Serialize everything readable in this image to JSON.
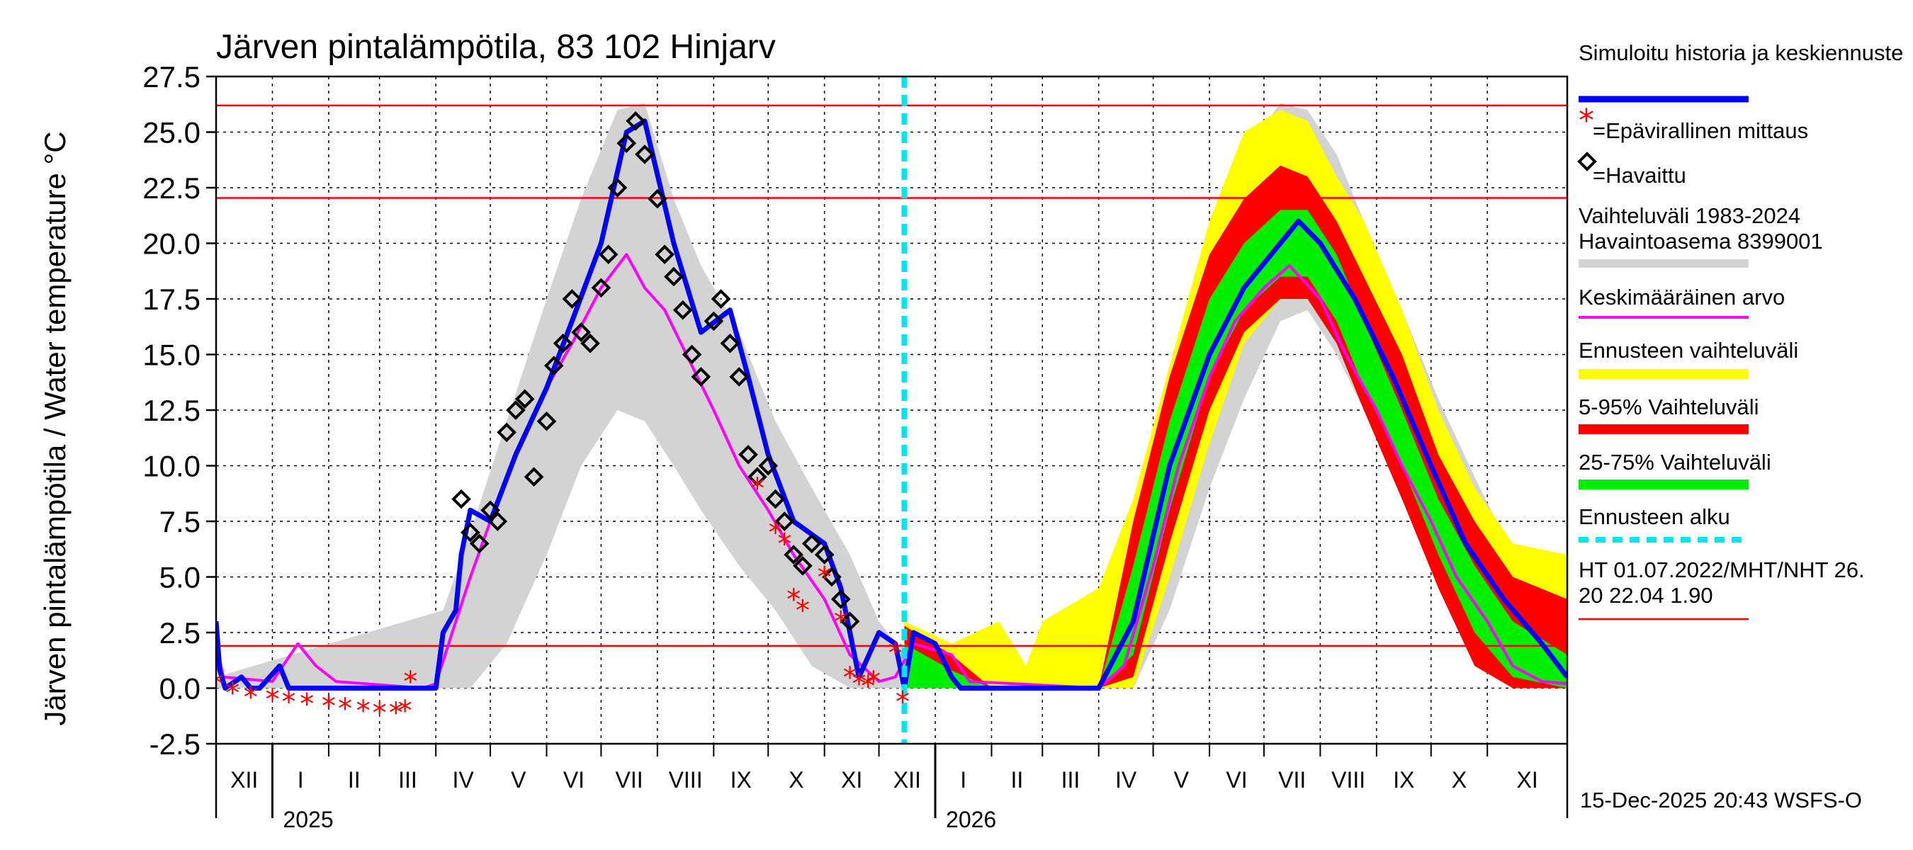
{
  "chart_data": {
    "type": "line",
    "title": "Järven pintalämpötila, 83 102 Hinjarv",
    "ylabel": "Järven pintalämpötila / Water temperature °C",
    "xlabel": "",
    "ylim": [
      -2.5,
      27.5
    ],
    "y_ticks": [
      "27.5",
      "25.0",
      "22.5",
      "20.0",
      "17.5",
      "15.0",
      "12.5",
      "10.0",
      "7.5",
      "5.0",
      "2.5",
      "0.0",
      "-2.5"
    ],
    "x_start": "2024-12-01",
    "x_end": "2026-12-15",
    "forecast_start": "2025-12-15",
    "months": [
      {
        "label": "XII",
        "start": "2024-12-01"
      },
      {
        "label": "I",
        "start": "2025-01-01"
      },
      {
        "label": "II",
        "start": "2025-02-01"
      },
      {
        "label": "III",
        "start": "2025-03-01"
      },
      {
        "label": "IV",
        "start": "2025-04-01"
      },
      {
        "label": "V",
        "start": "2025-05-01"
      },
      {
        "label": "VI",
        "start": "2025-06-01"
      },
      {
        "label": "VII",
        "start": "2025-07-01"
      },
      {
        "label": "VIII",
        "start": "2025-08-01"
      },
      {
        "label": "IX",
        "start": "2025-09-01"
      },
      {
        "label": "X",
        "start": "2025-10-01"
      },
      {
        "label": "XI",
        "start": "2025-11-01"
      },
      {
        "label": "XII",
        "start": "2025-12-01"
      },
      {
        "label": "I",
        "start": "2026-01-01"
      },
      {
        "label": "II",
        "start": "2026-02-01"
      },
      {
        "label": "III",
        "start": "2026-03-01"
      },
      {
        "label": "IV",
        "start": "2026-04-01"
      },
      {
        "label": "V",
        "start": "2026-05-01"
      },
      {
        "label": "VI",
        "start": "2026-06-01"
      },
      {
        "label": "VII",
        "start": "2026-07-01"
      },
      {
        "label": "VIII",
        "start": "2026-08-01"
      },
      {
        "label": "IX",
        "start": "2026-09-01"
      },
      {
        "label": "X",
        "start": "2026-10-01"
      },
      {
        "label": "XI",
        "start": "2026-11-01"
      }
    ],
    "years": [
      {
        "label": "2025",
        "date": "2025-01-01"
      },
      {
        "label": "2026",
        "date": "2026-01-01"
      }
    ],
    "reference_lines": [
      26.2,
      22.04,
      1.9
    ],
    "series": [
      {
        "name": "Vaihteluväli 1983-2024 Havaintoasema 8399001",
        "type": "band",
        "color": "#d3d3d3",
        "x": [
          "2024-12-01",
          "2025-04-05",
          "2025-04-20",
          "2025-05-10",
          "2025-06-01",
          "2025-06-20",
          "2025-07-10",
          "2025-07-25",
          "2025-08-10",
          "2025-08-25",
          "2025-09-15",
          "2025-10-05",
          "2025-10-25",
          "2025-11-15",
          "2025-12-01",
          "2025-12-15"
        ],
        "low": [
          0,
          0,
          0,
          2.0,
          6.0,
          10.0,
          12.5,
          12.0,
          10.0,
          8.0,
          5.5,
          3.5,
          1.0,
          0,
          0,
          0
        ],
        "high": [
          0.5,
          3.5,
          7.0,
          12.0,
          17.5,
          22.0,
          26.0,
          26.3,
          22.0,
          19.0,
          16.0,
          12.0,
          9.0,
          6.0,
          3.0,
          1.5
        ]
      },
      {
        "name": "Vaihteluväli 1983-2024 Havaintoasema 8399001",
        "type": "band",
        "color": "#d3d3d3",
        "x": [
          "2026-04-01",
          "2026-04-20",
          "2026-05-10",
          "2026-06-01",
          "2026-06-20",
          "2026-07-10",
          "2026-07-25",
          "2026-08-10",
          "2026-08-25",
          "2026-09-15",
          "2026-10-05",
          "2026-10-25",
          "2026-11-15",
          "2026-12-15"
        ],
        "low": [
          0,
          0,
          3.5,
          9.0,
          13.0,
          16.5,
          17.0,
          15.0,
          12.5,
          8.5,
          5.0,
          1.5,
          0,
          0
        ],
        "high": [
          0.5,
          4.0,
          13.0,
          19.5,
          24.0,
          26.3,
          26.0,
          24.0,
          21.0,
          17.0,
          13.0,
          9.5,
          6.0,
          3.0
        ]
      },
      {
        "name": "Ennusteen vaihteluväli",
        "type": "band",
        "color": "#ffff00",
        "x": [
          "2025-12-15",
          "2026-01-10",
          "2026-02-05",
          "2026-02-20",
          "2026-03-01",
          "2026-04-01",
          "2026-04-20",
          "2026-05-10",
          "2026-06-01",
          "2026-06-20",
          "2026-07-10",
          "2026-07-25",
          "2026-08-10",
          "2026-08-25",
          "2026-09-15",
          "2026-10-05",
          "2026-10-25",
          "2026-11-15",
          "2026-12-15"
        ],
        "low": [
          0,
          0,
          0,
          0,
          0,
          0,
          0,
          5.0,
          11.0,
          15.5,
          17.5,
          18.0,
          16.0,
          13.0,
          9.0,
          5.5,
          2.0,
          0,
          0
        ],
        "high": [
          3.0,
          2.0,
          3.0,
          1.0,
          3.0,
          4.5,
          8.5,
          14.5,
          21.0,
          25.0,
          26.0,
          25.5,
          23.0,
          21.0,
          17.0,
          12.5,
          9.0,
          6.5,
          6.0
        ]
      },
      {
        "name": "5-95% Vaihteluväli",
        "type": "band",
        "color": "#ff0000",
        "x": [
          "2025-12-15",
          "2026-01-10",
          "2026-02-01",
          "2026-04-01",
          "2026-04-20",
          "2026-05-10",
          "2026-06-01",
          "2026-06-20",
          "2026-07-10",
          "2026-07-25",
          "2026-08-10",
          "2026-08-25",
          "2026-09-15",
          "2026-10-05",
          "2026-10-25",
          "2026-11-15",
          "2026-12-15"
        ],
        "low": [
          0,
          0,
          0,
          0,
          0.5,
          6.5,
          12.5,
          16.0,
          17.5,
          17.5,
          15.5,
          12.5,
          8.5,
          4.5,
          1.0,
          0,
          0
        ],
        "high": [
          2.8,
          1.5,
          0,
          0,
          7.5,
          14.0,
          19.5,
          22.0,
          23.5,
          23.0,
          21.0,
          18.5,
          15.0,
          10.5,
          7.5,
          5.0,
          4.0
        ]
      },
      {
        "name": "25-75% Vaihteluväli",
        "type": "band",
        "color": "#00ee00",
        "x": [
          "2025-12-15",
          "2026-01-10",
          "2026-02-01",
          "2026-04-01",
          "2026-04-20",
          "2026-05-10",
          "2026-06-01",
          "2026-06-20",
          "2026-07-10",
          "2026-07-25",
          "2026-08-10",
          "2026-08-25",
          "2026-09-15",
          "2026-10-05",
          "2026-10-25",
          "2026-11-15",
          "2026-12-15"
        ],
        "low": [
          0,
          0,
          0,
          0,
          1.5,
          8.0,
          14.0,
          17.0,
          18.5,
          18.5,
          16.5,
          13.5,
          10.0,
          6.0,
          2.5,
          0.5,
          0
        ],
        "high": [
          2.0,
          0.8,
          0,
          0,
          5.5,
          12.0,
          17.5,
          20.0,
          21.5,
          21.5,
          19.5,
          16.5,
          12.5,
          8.5,
          5.5,
          3.0,
          1.5
        ]
      },
      {
        "name": "Keskimääräinen arvo",
        "type": "line",
        "color": "#ff00ff",
        "x": [
          "2024-12-01",
          "2024-12-05",
          "2025-01-01",
          "2025-01-15",
          "2025-01-25",
          "2025-02-05",
          "2025-03-25",
          "2025-04-01",
          "2025-04-10",
          "2025-04-20",
          "2025-05-01",
          "2025-05-15",
          "2025-06-01",
          "2025-06-15",
          "2025-07-01",
          "2025-07-15",
          "2025-07-25",
          "2025-08-05",
          "2025-08-20",
          "2025-09-01",
          "2025-09-15",
          "2025-10-01",
          "2025-10-15",
          "2025-11-01",
          "2025-11-15",
          "2025-12-01",
          "2025-12-10",
          "2025-12-20",
          "2026-01-10",
          "2026-01-20",
          "2026-04-01",
          "2026-04-15",
          "2026-05-01",
          "2026-05-15",
          "2026-06-01",
          "2026-06-15",
          "2026-07-01",
          "2026-07-15",
          "2026-08-01",
          "2026-08-15",
          "2026-09-01",
          "2026-09-15",
          "2026-10-01",
          "2026-10-15",
          "2026-11-01",
          "2026-11-15",
          "2026-12-01",
          "2026-12-15"
        ],
        "y": [
          2.0,
          0.5,
          0.3,
          2.0,
          1.0,
          0.3,
          0,
          0.2,
          2.5,
          5.0,
          7.5,
          10.5,
          13.5,
          15.5,
          18.0,
          19.5,
          18.0,
          17.0,
          14.5,
          12.5,
          10.0,
          8.0,
          6.0,
          4.0,
          1.5,
          0.3,
          0.5,
          2.0,
          1.5,
          0.3,
          0,
          1.0,
          5.5,
          10.0,
          14.0,
          16.5,
          18.0,
          19.0,
          17.5,
          15.0,
          12.5,
          10.0,
          7.5,
          5.0,
          3.0,
          1.0,
          0.3,
          0.2
        ]
      },
      {
        "name": "Simuloitu historia ja keskiennuste",
        "type": "line",
        "color": "#0000ff",
        "x": [
          "2024-12-01",
          "2024-12-03",
          "2024-12-06",
          "2024-12-15",
          "2024-12-20",
          "2024-12-25",
          "2025-01-05",
          "2025-01-10",
          "2025-01-15",
          "2025-04-01",
          "2025-04-05",
          "2025-04-12",
          "2025-04-15",
          "2025-04-20",
          "2025-05-01",
          "2025-05-15",
          "2025-06-01",
          "2025-06-15",
          "2025-07-01",
          "2025-07-15",
          "2025-07-25",
          "2025-08-10",
          "2025-08-25",
          "2025-09-10",
          "2025-09-20",
          "2025-10-01",
          "2025-10-15",
          "2025-11-01",
          "2025-11-10",
          "2025-11-20",
          "2025-12-01",
          "2025-12-10",
          "2025-12-15",
          "2025-12-20",
          "2026-01-01",
          "2026-01-10",
          "2026-01-15",
          "2026-04-01",
          "2026-04-20",
          "2026-05-10",
          "2026-06-01",
          "2026-06-20",
          "2026-07-10",
          "2026-07-20",
          "2026-08-01",
          "2026-08-20",
          "2026-09-10",
          "2026-10-01",
          "2026-10-20",
          "2026-11-10",
          "2026-12-01",
          "2026-12-15"
        ],
        "y": [
          3.0,
          0.8,
          0,
          0.5,
          0,
          0,
          1.0,
          0,
          0,
          0,
          2.5,
          3.5,
          6.0,
          8.0,
          7.5,
          10.5,
          13.5,
          16.5,
          20.0,
          25.0,
          25.5,
          20.0,
          16.0,
          17.0,
          14.0,
          10.5,
          7.5,
          6.5,
          4.5,
          0.5,
          2.5,
          2.0,
          0,
          2.5,
          2.0,
          0.5,
          0,
          0,
          3.0,
          10.0,
          15.0,
          18.0,
          20.0,
          21.0,
          20.0,
          17.5,
          14.0,
          10.0,
          6.5,
          4.0,
          2.0,
          0.5
        ]
      }
    ],
    "observations_havaittu": {
      "x": [
        "2025-04-15",
        "2025-04-20",
        "2025-04-25",
        "2025-05-01",
        "2025-05-05",
        "2025-05-10",
        "2025-05-15",
        "2025-05-20",
        "2025-05-25",
        "2025-06-01",
        "2025-06-05",
        "2025-06-10",
        "2025-06-15",
        "2025-06-20",
        "2025-06-25",
        "2025-07-01",
        "2025-07-05",
        "2025-07-10",
        "2025-07-15",
        "2025-07-20",
        "2025-07-25",
        "2025-08-01",
        "2025-08-05",
        "2025-08-10",
        "2025-08-15",
        "2025-08-20",
        "2025-08-25",
        "2025-09-01",
        "2025-09-05",
        "2025-09-10",
        "2025-09-15",
        "2025-09-20",
        "2025-09-25",
        "2025-10-01",
        "2025-10-05",
        "2025-10-10",
        "2025-10-15",
        "2025-10-20",
        "2025-10-25",
        "2025-11-01",
        "2025-11-05",
        "2025-11-10",
        "2025-11-15"
      ],
      "y": [
        8.5,
        7.0,
        6.5,
        8.0,
        7.5,
        11.5,
        12.5,
        13.0,
        9.5,
        12.0,
        14.5,
        15.5,
        17.5,
        16.0,
        15.5,
        18.0,
        19.5,
        22.5,
        24.5,
        25.5,
        24.0,
        22.0,
        19.5,
        18.5,
        17.0,
        15.0,
        14.0,
        16.5,
        17.5,
        15.5,
        14.0,
        10.5,
        9.5,
        10.0,
        8.5,
        7.5,
        6.0,
        5.5,
        6.5,
        6.0,
        5.0,
        4.0,
        3.0
      ]
    },
    "observations_epavirallinen": {
      "x": [
        "2024-12-01",
        "2024-12-10",
        "2024-12-20",
        "2025-01-01",
        "2025-01-10",
        "2025-01-20",
        "2025-02-01",
        "2025-02-10",
        "2025-02-20",
        "2025-03-01",
        "2025-03-10",
        "2025-03-15",
        "2025-03-18",
        "2025-09-25",
        "2025-10-05",
        "2025-10-10",
        "2025-10-15",
        "2025-10-20",
        "2025-11-01",
        "2025-11-10",
        "2025-11-15",
        "2025-11-20",
        "2025-11-25",
        "2025-11-28",
        "2025-12-10",
        "2025-12-14"
      ],
      "y": [
        0.2,
        -0.2,
        -0.4,
        -0.5,
        -0.6,
        -0.7,
        -0.8,
        -0.9,
        -1.0,
        -1.1,
        -1.1,
        -1.0,
        0.3,
        9.0,
        7.0,
        6.5,
        4.0,
        3.5,
        5.0,
        3.0,
        0.5,
        0.2,
        0.1,
        0.3,
        1.6,
        -0.6
      ]
    }
  },
  "legend": {
    "sim": "Simuloitu historia ja keskiennuste",
    "epavirallinen": "=Epävirallinen mittaus",
    "havaittu": "=Havaittu",
    "vaihteluvali": "Vaihteluväli 1983-2024\n Havaintoasema 8399001",
    "keskiarvo": "Keskimääräinen arvo",
    "ennuste_vaihteluvali": "Ennusteen vaihteluväli",
    "p5_95": "5-95% Vaihteluväli",
    "p25_75": "25-75% Vaihteluväli",
    "ennusteen_alku": "Ennusteen alku",
    "ht": "HT 01.07.2022/MHT/NHT 26.\n20 22.04 1.90"
  },
  "footer": "15-Dec-2025 20:43 WSFS-O",
  "colors": {
    "sim": "#0000ff",
    "mean": "#ff00ff",
    "hist_band": "#d3d3d3",
    "fc_band": "#ffff00",
    "p5_95": "#ff0000",
    "p25_75": "#00ee00",
    "forecast_start": "#00e5ee",
    "ref_lines": "#ff0000",
    "unofficial": "#ff0000",
    "observed": "#000000"
  }
}
